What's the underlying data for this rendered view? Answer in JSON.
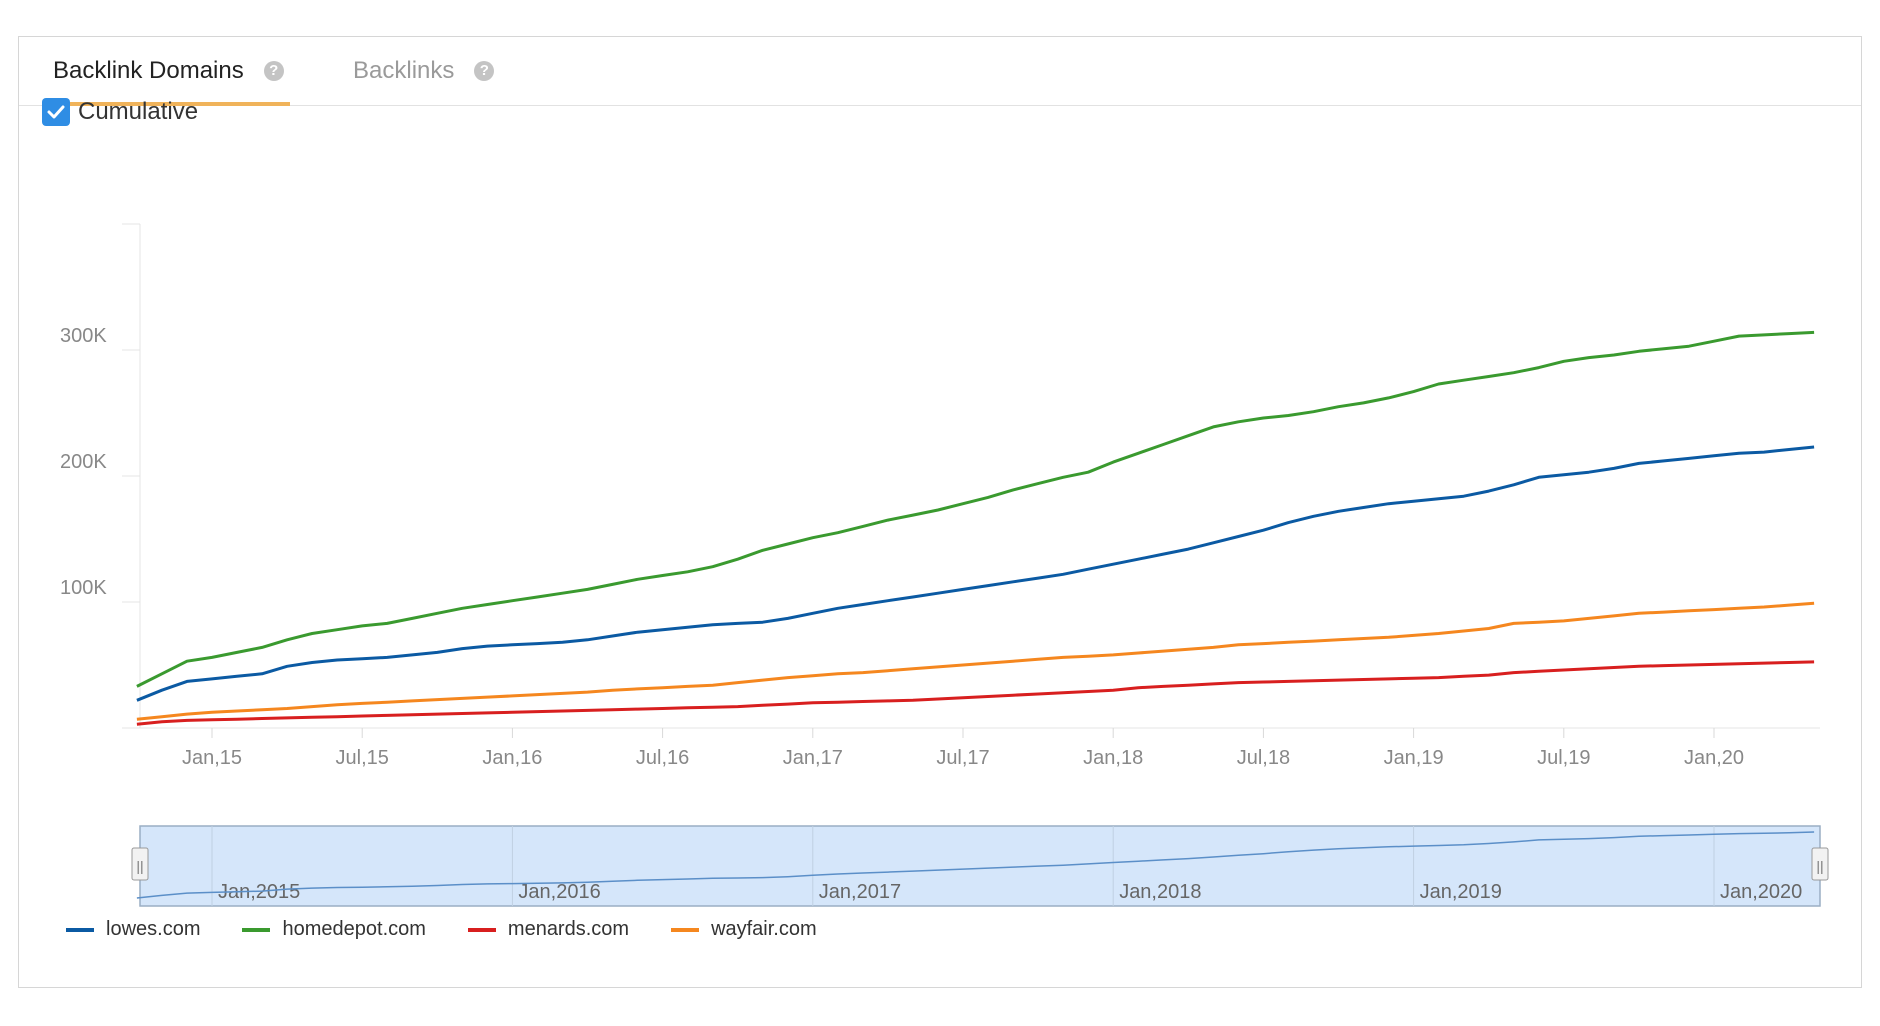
{
  "tabs": [
    {
      "label": "Backlink Domains",
      "help": "?",
      "active": true
    },
    {
      "label": "Backlinks",
      "help": "?",
      "active": false
    }
  ],
  "cumulative": {
    "label": "Cumulative",
    "checked": true
  },
  "colors": {
    "lowes": "#0b5aa3",
    "homedepot": "#3a9a2f",
    "menards": "#d81f1f",
    "wayfair": "#f5871f",
    "tab_underline": "#f0b35a",
    "checkbox": "#2f8de4",
    "navigator_fill": "#d5e6fa",
    "navigator_border": "#9aaec4"
  },
  "legend": [
    {
      "name": "lowes.com",
      "key": "lowes"
    },
    {
      "name": "homedepot.com",
      "key": "homedepot"
    },
    {
      "name": "menards.com",
      "key": "menards"
    },
    {
      "name": "wayfair.com",
      "key": "wayfair"
    }
  ],
  "navigator": {
    "labels": [
      "Jan,2015",
      "Jan,2016",
      "Jan,2017",
      "Jan,2018",
      "Jan,2019",
      "Jan,2020"
    ],
    "handle_glyph": "||"
  },
  "chart_data": {
    "type": "line",
    "title": "",
    "xlabel": "",
    "ylabel": "",
    "ylim": [
      0,
      400000
    ],
    "yticks": [
      {
        "value": 100000,
        "label": "100K"
      },
      {
        "value": 200000,
        "label": "200K"
      },
      {
        "value": 300000,
        "label": "300K"
      }
    ],
    "xticks": [
      "Jan,15",
      "Jul,15",
      "Jan,16",
      "Jul,16",
      "Jan,17",
      "Jul,17",
      "Jan,18",
      "Jul,18",
      "Jan,19",
      "Jul,19",
      "Jan,20"
    ],
    "xticks_months": [
      0,
      6,
      12,
      18,
      24,
      30,
      36,
      42,
      48,
      54,
      60
    ],
    "x_months": [
      -3,
      -2,
      -1,
      0,
      1,
      2,
      3,
      4,
      5,
      6,
      7,
      8,
      9,
      10,
      11,
      12,
      13,
      14,
      15,
      16,
      17,
      18,
      19,
      20,
      21,
      22,
      23,
      24,
      25,
      26,
      27,
      28,
      29,
      30,
      31,
      32,
      33,
      34,
      35,
      36,
      37,
      38,
      39,
      40,
      41,
      42,
      43,
      44,
      45,
      46,
      47,
      48,
      49,
      50,
      51,
      52,
      53,
      54,
      55,
      56,
      57,
      58,
      59,
      60,
      61,
      62,
      63,
      64
    ],
    "grid": false,
    "legend_position": "bottom-left",
    "series": [
      {
        "name": "lowes.com",
        "key": "lowes",
        "values": [
          22000,
          30000,
          37000,
          39000,
          41000,
          43000,
          49000,
          52000,
          54000,
          55000,
          56000,
          58000,
          60000,
          63000,
          65000,
          66000,
          67000,
          68000,
          70000,
          73000,
          76000,
          78000,
          80000,
          82000,
          83000,
          84000,
          87000,
          91000,
          95000,
          98000,
          101000,
          104000,
          107000,
          110000,
          113000,
          116000,
          119000,
          122000,
          126000,
          130000,
          134000,
          138000,
          142000,
          147000,
          152000,
          157000,
          163000,
          168000,
          172000,
          175000,
          178000,
          180000,
          182000,
          184000,
          188000,
          193000,
          199000,
          201000,
          203000,
          206000,
          210000,
          212000,
          214000,
          216000,
          218000,
          219000,
          221000,
          223000
        ]
      },
      {
        "name": "homedepot.com",
        "key": "homedepot",
        "values": [
          33000,
          43000,
          53000,
          56000,
          60000,
          64000,
          70000,
          75000,
          78000,
          81000,
          83000,
          87000,
          91000,
          95000,
          98000,
          101000,
          104000,
          107000,
          110000,
          114000,
          118000,
          121000,
          124000,
          128000,
          134000,
          141000,
          146000,
          151000,
          155000,
          160000,
          165000,
          169000,
          173000,
          178000,
          183000,
          189000,
          194000,
          199000,
          203000,
          211000,
          218000,
          225000,
          232000,
          239000,
          243000,
          246000,
          248000,
          251000,
          255000,
          258000,
          262000,
          267000,
          273000,
          276000,
          279000,
          282000,
          286000,
          291000,
          294000,
          296000,
          299000,
          301000,
          303000,
          307000,
          311000,
          312000,
          313000,
          314000
        ]
      },
      {
        "name": "menards.com",
        "key": "menards",
        "values": [
          3000,
          5000,
          6000,
          6500,
          7000,
          7500,
          8000,
          8500,
          9000,
          9500,
          10000,
          10500,
          11000,
          11500,
          12000,
          12500,
          13000,
          13500,
          14000,
          14500,
          15000,
          15500,
          16000,
          16500,
          17000,
          18000,
          19000,
          20000,
          20500,
          21000,
          21500,
          22000,
          23000,
          24000,
          25000,
          26000,
          27000,
          28000,
          29000,
          30000,
          32000,
          33000,
          34000,
          35000,
          36000,
          36500,
          37000,
          37500,
          38000,
          38500,
          39000,
          39500,
          40000,
          41000,
          42000,
          44000,
          45000,
          46000,
          47000,
          48000,
          49000,
          49500,
          50000,
          50500,
          51000,
          51500,
          52000,
          52500
        ]
      },
      {
        "name": "wayfair.com",
        "key": "wayfair",
        "values": [
          7000,
          9000,
          11000,
          12500,
          13500,
          14500,
          15500,
          17000,
          18500,
          19500,
          20500,
          21500,
          22500,
          23500,
          24500,
          25500,
          26500,
          27500,
          28500,
          30000,
          31000,
          32000,
          33000,
          34000,
          36000,
          38000,
          40000,
          41500,
          43000,
          44000,
          45500,
          47000,
          48500,
          50000,
          51500,
          53000,
          54500,
          56000,
          57000,
          58000,
          59500,
          61000,
          62500,
          64000,
          66000,
          67000,
          68000,
          69000,
          70000,
          71000,
          72000,
          73500,
          75000,
          77000,
          79000,
          83000,
          84000,
          85000,
          87000,
          89000,
          91000,
          92000,
          93000,
          94000,
          95000,
          96000,
          97500,
          99000
        ]
      }
    ]
  }
}
